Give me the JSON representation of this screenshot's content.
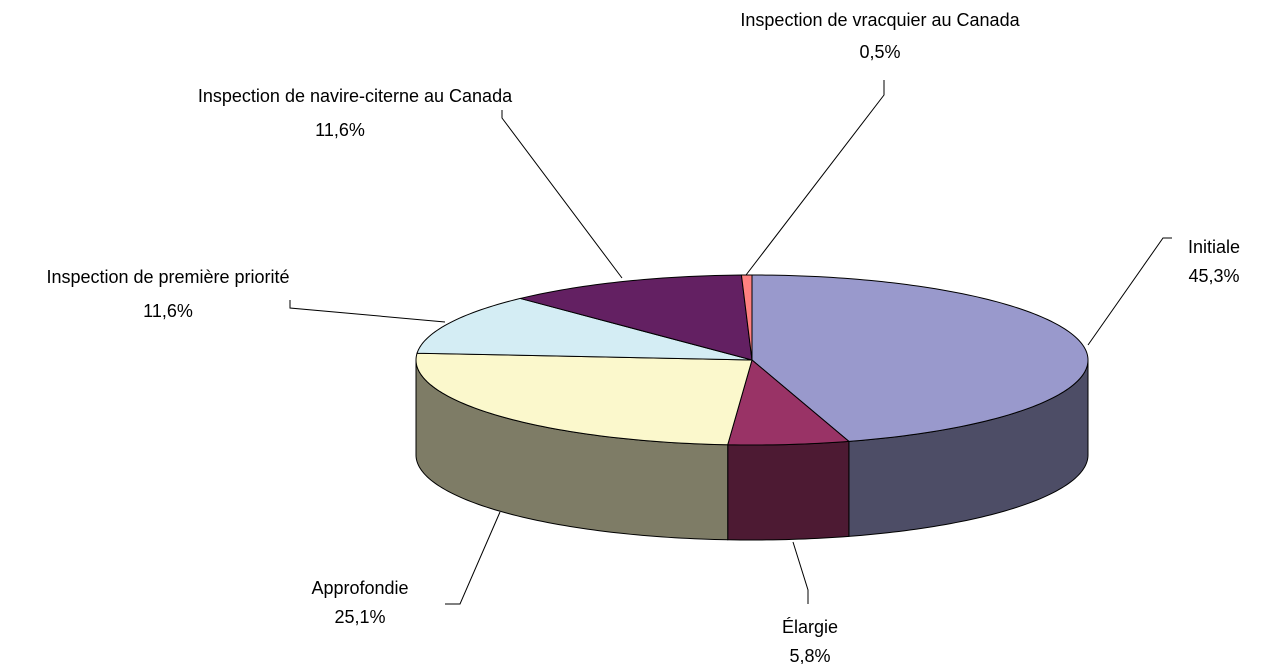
{
  "chart_data": {
    "type": "pie",
    "categories": [
      "Initiale",
      "Élargie",
      "Approfondie",
      "Inspection de première priorité",
      "Inspection de navire-citerne au Canada",
      "Inspection de vracquier au Canada"
    ],
    "values": [
      45.3,
      5.8,
      25.1,
      11.6,
      11.6,
      0.5
    ],
    "value_labels": [
      "45,3%",
      "5,8%",
      "25,1%",
      "11,6%",
      "11,6%",
      "0,5%"
    ],
    "colors": [
      "#9999cc",
      "#993366",
      "#fbf8cc",
      "#d4edf4",
      "#632062",
      "#ff8080"
    ]
  }
}
